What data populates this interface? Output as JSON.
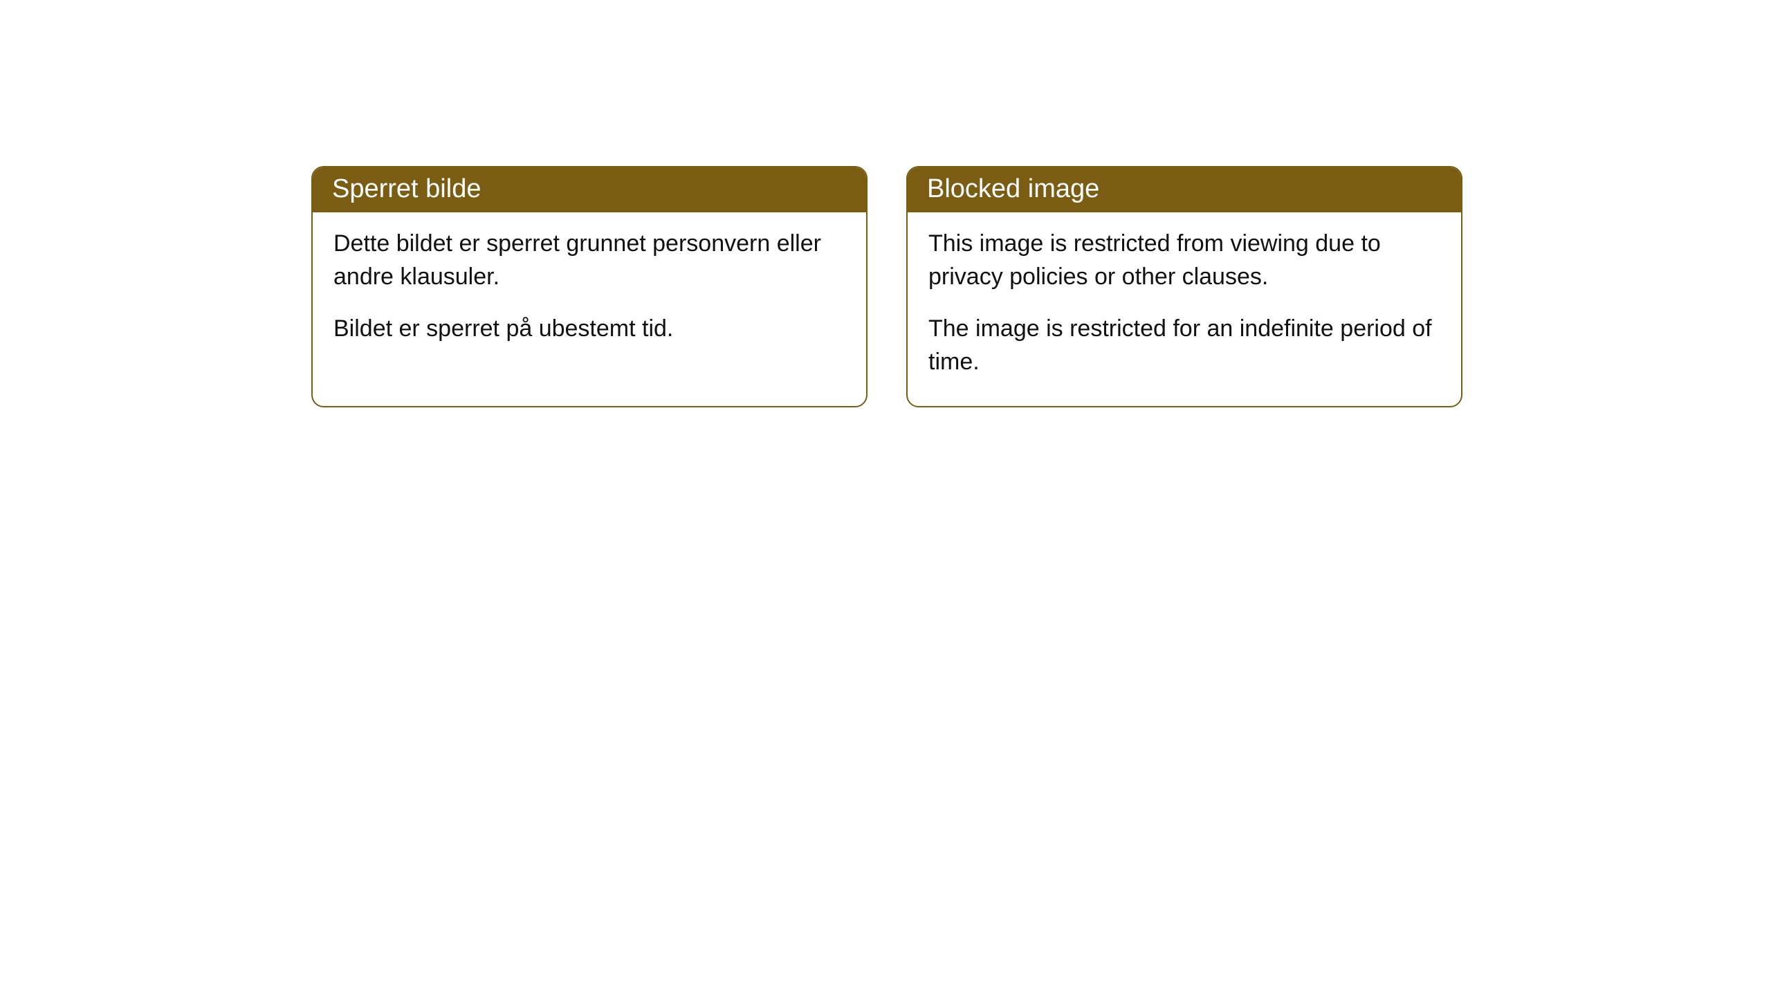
{
  "cards": [
    {
      "title": "Sperret bilde",
      "paragraph1": "Dette bildet er sperret grunnet personvern eller andre klausuler.",
      "paragraph2": "Bildet er sperret på ubestemt tid."
    },
    {
      "title": "Blocked image",
      "paragraph1": "This image is restricted from viewing due to privacy policies or other clauses.",
      "paragraph2": "The image is restricted for an indefinite period of time."
    }
  ],
  "style": {
    "header_bg": "#7a5d12",
    "header_text_color": "#ffffff",
    "border_color": "#7a5d12",
    "body_text_color": "#111111",
    "background_color": "#ffffff",
    "border_radius": 18,
    "header_fontsize": 38,
    "body_fontsize": 34
  }
}
